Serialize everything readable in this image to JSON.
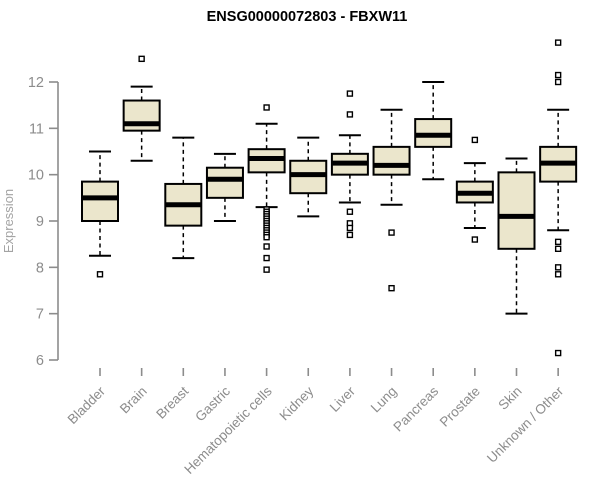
{
  "colors": {
    "background": "#ffffff",
    "box_fill": "#EBE6CC",
    "box_stroke": "#000000",
    "axis": "#8c8c8c",
    "tick_label": "#8c8c8c",
    "ylabel_color": "#a3a3a3",
    "title_color": "#000000"
  },
  "chart_data": {
    "type": "boxplot",
    "title": "ENSG00000072803 - FBXW11",
    "ylabel": "Expression",
    "xlabel": "",
    "ylim": [
      6,
      12
    ],
    "yticks": [
      6,
      7,
      8,
      9,
      10,
      11,
      12
    ],
    "grid": false,
    "legend": "none",
    "categories": [
      "Bladder",
      "Brain",
      "Breast",
      "Gastric",
      "Hematopoietic cells",
      "Kidney",
      "Liver",
      "Lung",
      "Pancreas",
      "Prostate",
      "Skin",
      "Unknown / Other"
    ],
    "series": [
      {
        "name": "Bladder",
        "whisker_low": 8.25,
        "q1": 9.0,
        "median": 9.5,
        "q3": 9.85,
        "whisker_high": 10.5,
        "outliers": [
          7.85
        ]
      },
      {
        "name": "Brain",
        "whisker_low": 10.3,
        "q1": 10.95,
        "median": 11.1,
        "q3": 11.6,
        "whisker_high": 11.9,
        "outliers": [
          12.5
        ]
      },
      {
        "name": "Breast",
        "whisker_low": 8.2,
        "q1": 8.9,
        "median": 9.35,
        "q3": 9.8,
        "whisker_high": 10.8,
        "outliers": []
      },
      {
        "name": "Gastric",
        "whisker_low": 9.0,
        "q1": 9.5,
        "median": 9.9,
        "q3": 10.15,
        "whisker_high": 10.45,
        "outliers": []
      },
      {
        "name": "Hematopoietic cells",
        "whisker_low": 9.3,
        "q1": 10.05,
        "median": 10.35,
        "q3": 10.55,
        "whisker_high": 11.1,
        "outliers": [
          11.45,
          9.25,
          9.2,
          9.15,
          9.1,
          9.05,
          9.0,
          8.95,
          8.9,
          8.85,
          8.8,
          8.75,
          8.7,
          8.65,
          8.45,
          8.2,
          7.95
        ]
      },
      {
        "name": "Kidney",
        "whisker_low": 9.1,
        "q1": 9.6,
        "median": 10.0,
        "q3": 10.3,
        "whisker_high": 10.8,
        "outliers": []
      },
      {
        "name": "Liver",
        "whisker_low": 9.4,
        "q1": 10.0,
        "median": 10.25,
        "q3": 10.45,
        "whisker_high": 10.85,
        "outliers": [
          11.75,
          11.3,
          9.2,
          8.95,
          8.85,
          8.7
        ]
      },
      {
        "name": "Lung",
        "whisker_low": 9.35,
        "q1": 10.0,
        "median": 10.2,
        "q3": 10.6,
        "whisker_high": 11.4,
        "outliers": [
          8.75,
          7.55
        ]
      },
      {
        "name": "Pancreas",
        "whisker_low": 9.9,
        "q1": 10.6,
        "median": 10.85,
        "q3": 11.2,
        "whisker_high": 12.0,
        "outliers": []
      },
      {
        "name": "Prostate",
        "whisker_low": 8.85,
        "q1": 9.4,
        "median": 9.6,
        "q3": 9.85,
        "whisker_high": 10.25,
        "outliers": [
          10.75,
          8.6
        ]
      },
      {
        "name": "Skin",
        "whisker_low": 7.0,
        "q1": 8.4,
        "median": 9.1,
        "q3": 10.05,
        "whisker_high": 10.35,
        "outliers": []
      },
      {
        "name": "Unknown / Other",
        "whisker_low": 8.8,
        "q1": 9.85,
        "median": 10.25,
        "q3": 10.6,
        "whisker_high": 11.4,
        "outliers": [
          12.85,
          12.15,
          12.0,
          8.55,
          8.4,
          8.0,
          7.85,
          6.15
        ]
      }
    ]
  }
}
